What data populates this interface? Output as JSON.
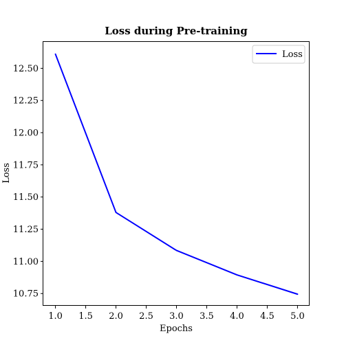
{
  "chart_data": {
    "type": "line",
    "title": "Loss during Pre-training",
    "xlabel": "Epochs",
    "ylabel": "Loss",
    "x": [
      1.0,
      2.0,
      3.0,
      4.0,
      5.0
    ],
    "series": [
      {
        "name": "Loss",
        "values": [
          12.61,
          11.38,
          11.085,
          10.895,
          10.745
        ],
        "color": "#0000ff"
      }
    ],
    "xlim": [
      0.8,
      5.2
    ],
    "ylim": [
      10.655,
      12.705
    ],
    "xticks": [
      "1.0",
      "1.5",
      "2.0",
      "2.5",
      "3.0",
      "3.5",
      "4.0",
      "4.5",
      "5.0"
    ],
    "yticks": [
      "10.75",
      "11.00",
      "11.25",
      "11.50",
      "11.75",
      "12.00",
      "12.25",
      "12.50"
    ],
    "grid": false,
    "legend_position": "top-right"
  }
}
